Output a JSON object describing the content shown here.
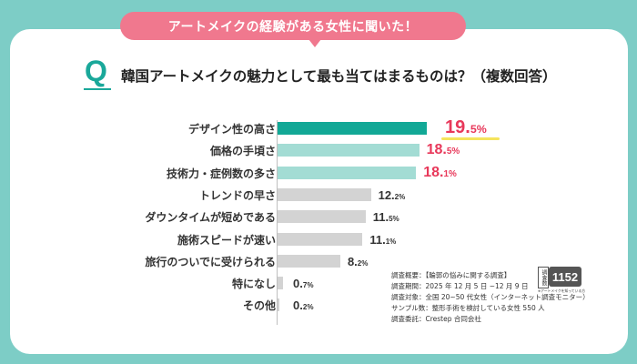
{
  "banner": {
    "text": "アートメイクの経験がある女性に聞いた！"
  },
  "question": {
    "letter": "Q",
    "text": "韓国アートメイクの魅力として最も当てはまるものは？（複数回答）"
  },
  "colors": {
    "top": "#12a896",
    "mid": "#a3dcd4",
    "rest": "#d3d3d3",
    "highlight_text": "#e8385a",
    "normal_text": "#333333",
    "highlight_underline": "#f5e45c"
  },
  "chart_data": {
    "type": "bar",
    "orientation": "horizontal",
    "title": "韓国アートメイクの魅力として最も当てはまるものは？（複数回答）",
    "unit": "%",
    "categories": [
      "デザイン性の高さ",
      "価格の手頃さ",
      "技術力・症例数の多さ",
      "トレンドの早さ",
      "ダウンタイムが短めである",
      "施術スピードが速い",
      "旅行のついでに受けられる",
      "特になし",
      "その他"
    ],
    "values": [
      19.5,
      18.5,
      18.1,
      12.2,
      11.5,
      11.1,
      8.2,
      0.7,
      0.2
    ],
    "value_labels": [
      {
        "int": "19.",
        "dec": "5%"
      },
      {
        "int": "18.",
        "dec": "5%"
      },
      {
        "int": "18.",
        "dec": "1%"
      },
      {
        "int": "12.",
        "dec": "2%"
      },
      {
        "int": "11.",
        "dec": "5%"
      },
      {
        "int": "11.",
        "dec": "1%"
      },
      {
        "int": "8.",
        "dec": "2%"
      },
      {
        "int": "0.",
        "dec": "7%"
      },
      {
        "int": "0.",
        "dec": "2%"
      }
    ],
    "xlim": [
      0,
      20
    ]
  },
  "notes": {
    "lines": [
      "調査概要：【輪郭の悩みに関する調査】",
      "調査期間：2025 年 12 月 5 日 ~12 月 9 日",
      "調査対象：全国 20~50 代女性（インターネット調査モニター）",
      "サンプル数：整形手術を検討している女性 550 人",
      "調査委託：Crestep 合同会社"
    ]
  },
  "badge": {
    "vertical_label": "調査数",
    "number": "1152",
    "caption": "※アートメイクを知っている方"
  }
}
